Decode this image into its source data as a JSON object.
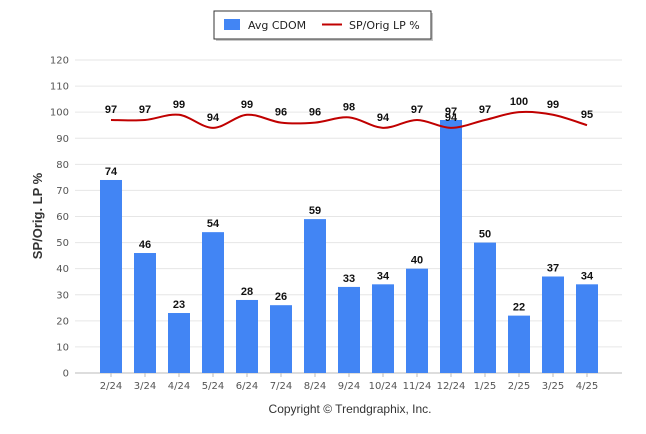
{
  "chart_data": {
    "type": "bar",
    "categories": [
      "2/24",
      "3/24",
      "4/24",
      "5/24",
      "6/24",
      "7/24",
      "8/24",
      "9/24",
      "10/24",
      "11/24",
      "12/24",
      "1/25",
      "2/25",
      "3/25",
      "4/25"
    ],
    "series": [
      {
        "name": "Avg CDOM",
        "type": "bar",
        "color": "#4285f4",
        "values": [
          74,
          46,
          23,
          54,
          28,
          26,
          59,
          33,
          34,
          40,
          97,
          50,
          22,
          37,
          34
        ]
      },
      {
        "name": "SP/Orig LP %",
        "type": "line",
        "color": "#c00000",
        "values": [
          97,
          97,
          99,
          94,
          99,
          96,
          96,
          98,
          94,
          97,
          94,
          97,
          100,
          99,
          95
        ]
      }
    ],
    "ylabel": "SP/Orig. LP %",
    "ylim": [
      0,
      120
    ],
    "yticks": [
      0,
      10,
      20,
      30,
      40,
      50,
      60,
      70,
      80,
      90,
      100,
      110,
      120
    ],
    "grid": true,
    "legend_position": "top-center",
    "footer": "Copyright © Trendgraphix, Inc."
  }
}
